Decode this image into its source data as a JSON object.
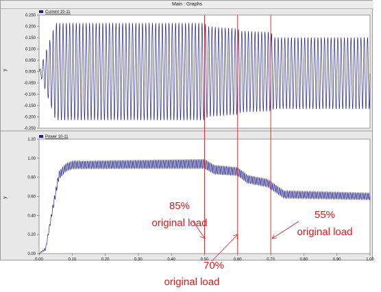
{
  "window": {
    "title": "Main : Graphs"
  },
  "chart_data": [
    {
      "type": "line",
      "legend": "Current 10-11",
      "ylabel": "y",
      "ylim": [
        -0.25,
        0.25
      ],
      "yticks": [
        "0.250",
        "0.200",
        "0.150",
        "0.100",
        "0.050",
        "0.000",
        "-0.050",
        "-0.100",
        "-0.150",
        "-0.200",
        "-0.250"
      ],
      "xlim": [
        0.0,
        1.0
      ],
      "frequency_hz": 100,
      "envelope": [
        {
          "t": 0.0,
          "amp": 0.0
        },
        {
          "t": 0.05,
          "amp": 0.215
        },
        {
          "t": 0.5,
          "amp": 0.215
        },
        {
          "t": 0.51,
          "amp": 0.2
        },
        {
          "t": 0.6,
          "amp": 0.19
        },
        {
          "t": 0.61,
          "amp": 0.18
        },
        {
          "t": 0.7,
          "amp": 0.175
        },
        {
          "t": 0.71,
          "amp": 0.158
        },
        {
          "t": 1.0,
          "amp": 0.158
        }
      ],
      "offset": [
        {
          "t": 0.0,
          "y": 0.0
        },
        {
          "t": 0.7,
          "y": 0.0
        },
        {
          "t": 0.71,
          "y": -0.007
        },
        {
          "t": 1.0,
          "y": -0.007
        }
      ]
    },
    {
      "type": "line",
      "legend": "Power 10-11",
      "ylabel": "y",
      "ylim": [
        0.0,
        1.2
      ],
      "yticks": [
        "1.20",
        "1.00",
        "0.80",
        "0.60",
        "0.40",
        "0.20",
        "0.00"
      ],
      "xlim": [
        0.0,
        1.0
      ],
      "xticks": [
        "0.00",
        "0.10",
        "0.20",
        "0.30",
        "0.40",
        "0.50",
        "0.60",
        "0.70",
        "0.80",
        "0.90",
        "1.00"
      ],
      "ripple_frequency_hz": 200,
      "mean": [
        {
          "t": 0.0,
          "y": 0.0
        },
        {
          "t": 0.02,
          "y": 0.05
        },
        {
          "t": 0.04,
          "y": 0.45
        },
        {
          "t": 0.06,
          "y": 0.82
        },
        {
          "t": 0.08,
          "y": 0.9
        },
        {
          "t": 0.1,
          "y": 0.93
        },
        {
          "t": 0.5,
          "y": 0.94
        },
        {
          "t": 0.53,
          "y": 0.88
        },
        {
          "t": 0.6,
          "y": 0.86
        },
        {
          "t": 0.63,
          "y": 0.78
        },
        {
          "t": 0.69,
          "y": 0.74
        },
        {
          "t": 0.74,
          "y": 0.62
        },
        {
          "t": 1.0,
          "y": 0.6
        }
      ],
      "ripple_amplitude": [
        {
          "t": 0.0,
          "a": 0.0
        },
        {
          "t": 0.05,
          "a": 0.04
        },
        {
          "t": 0.5,
          "a": 0.05
        },
        {
          "t": 0.6,
          "a": 0.045
        },
        {
          "t": 0.7,
          "a": 0.04
        },
        {
          "t": 1.0,
          "a": 0.035
        }
      ]
    }
  ],
  "markers": [
    0.5,
    0.6,
    0.7
  ],
  "annotations": {
    "a85": {
      "pct": "85%",
      "label": "original load"
    },
    "a70": {
      "pct": "70%",
      "label": "original load"
    },
    "a55": {
      "pct": "55%",
      "label": "original load"
    }
  },
  "colors": {
    "trace": "#1f1f8f",
    "marker": "#e0171b",
    "annotation": "#e0171b",
    "plot_bg": "#ffffff",
    "frame_bg": "#e8e8e8"
  }
}
